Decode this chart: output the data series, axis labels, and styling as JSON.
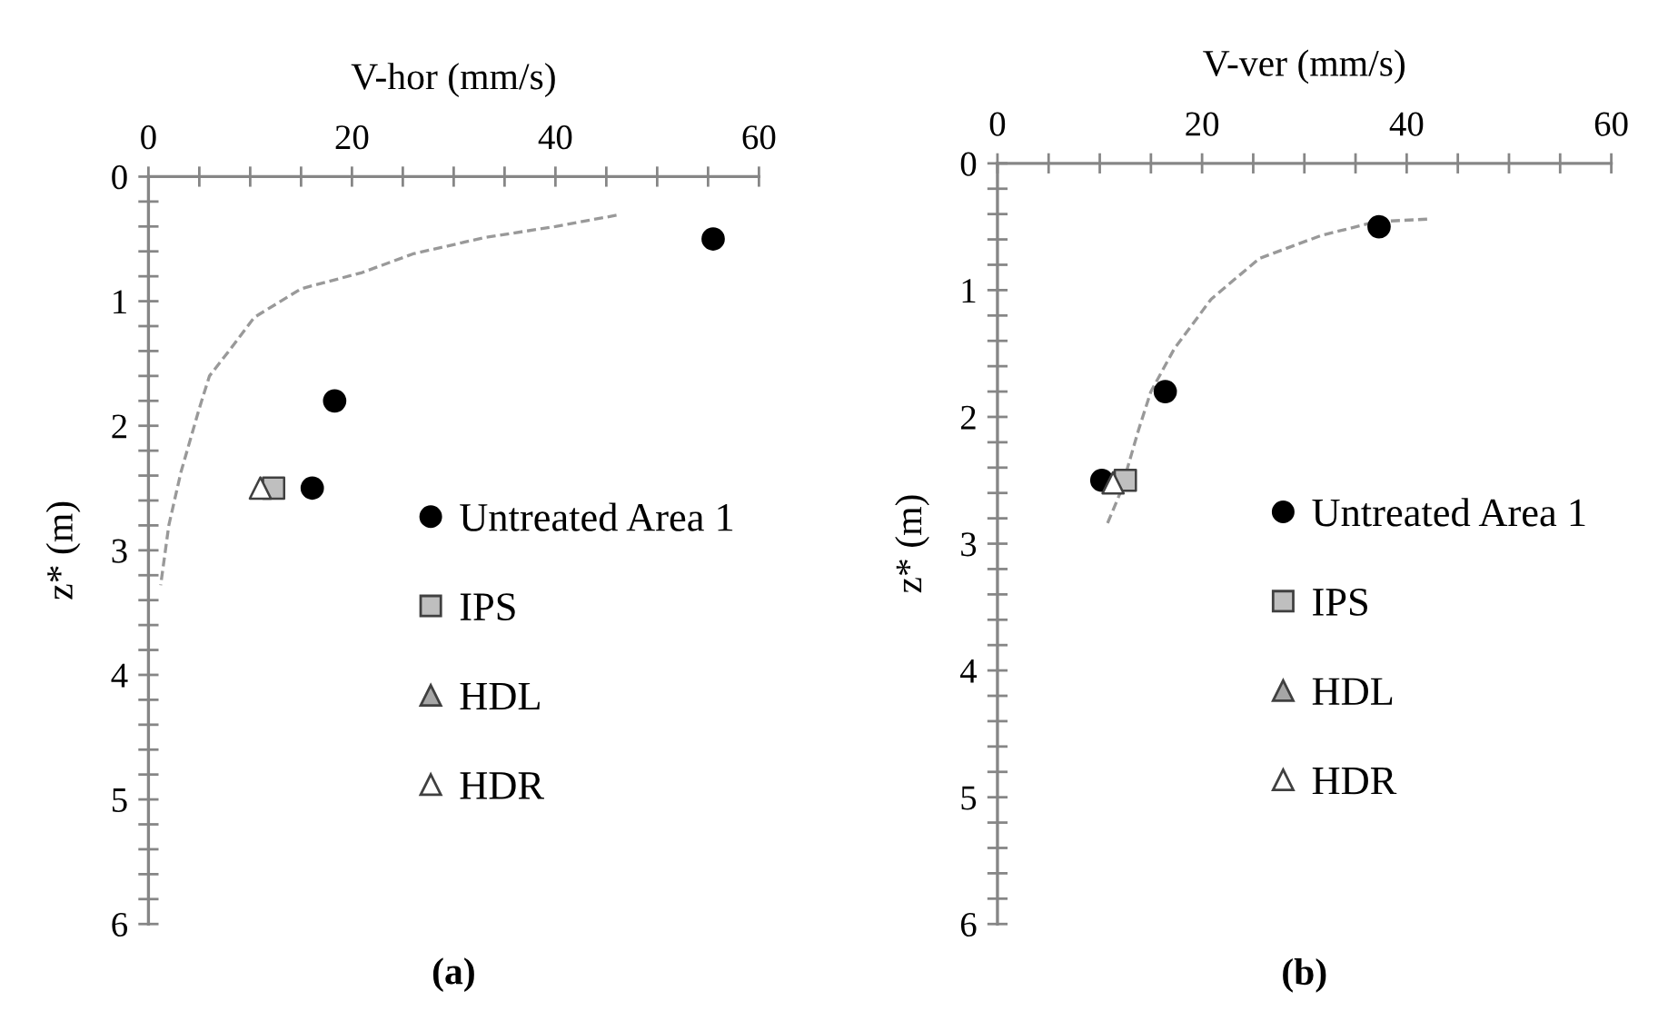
{
  "chart_data": [
    {
      "type": "scatter",
      "xlabel": "V-hor (mm/s)",
      "ylabel": "z* (m)",
      "annotations": [
        "(a)"
      ],
      "xlim": [
        0,
        60
      ],
      "ylim": [
        6,
        0
      ],
      "xticks": [
        0,
        {
          "value": 5,
          "label": null
        },
        {
          "value": 10,
          "label": null
        },
        {
          "value": 15,
          "label": null
        },
        20,
        {
          "value": 25,
          "label": null
        },
        {
          "value": 30,
          "label": null
        },
        {
          "value": 35,
          "label": null
        },
        40,
        {
          "value": 45,
          "label": null
        },
        {
          "value": 50,
          "label": null
        },
        {
          "value": 55,
          "label": null
        },
        60
      ],
      "yticks": [
        0,
        {
          "value": 0.2,
          "label": null
        },
        {
          "value": 0.4,
          "label": null
        },
        {
          "value": 0.6,
          "label": null
        },
        {
          "value": 0.8,
          "label": null
        },
        1,
        {
          "value": 1.2,
          "label": null
        },
        {
          "value": 1.4,
          "label": null
        },
        {
          "value": 1.6,
          "label": null
        },
        {
          "value": 1.8,
          "label": null
        },
        2,
        {
          "value": 2.2,
          "label": null
        },
        {
          "value": 2.4,
          "label": null
        },
        {
          "value": 2.6,
          "label": null
        },
        {
          "value": 2.8,
          "label": null
        },
        3,
        {
          "value": 3.2,
          "label": null
        },
        {
          "value": 3.4,
          "label": null
        },
        {
          "value": 3.6,
          "label": null
        },
        {
          "value": 3.8,
          "label": null
        },
        4,
        {
          "value": 4.2,
          "label": null
        },
        {
          "value": 4.4,
          "label": null
        },
        {
          "value": 4.6,
          "label": null
        },
        {
          "value": 4.8,
          "label": null
        },
        5,
        {
          "value": 5.2,
          "label": null
        },
        {
          "value": 5.4,
          "label": null
        },
        {
          "value": 5.6,
          "label": null
        },
        {
          "value": 5.8,
          "label": null
        },
        6
      ],
      "legend": "center right",
      "grid": false,
      "series": [
        {
          "type": "line",
          "color": "#999999",
          "line_style": "dashed",
          "marker": "none",
          "x": [
            46,
            40,
            33,
            26,
            21,
            15,
            10.4,
            8,
            6,
            5,
            3.2,
            2,
            1.2
          ],
          "values": [
            0.31,
            0.4,
            0.49,
            0.62,
            0.77,
            0.9,
            1.13,
            1.39,
            1.6,
            1.86,
            2.37,
            2.8,
            3.28
          ]
        },
        {
          "name": "Untreated Area 1",
          "color": "#000000",
          "marker": "circle",
          "x": [
            55.5,
            18.3,
            16.1
          ],
          "values": [
            0.5,
            1.8,
            2.5
          ]
        },
        {
          "name": "IPS",
          "color": "#bfbfbf",
          "marker": "square",
          "x": [
            12.3
          ],
          "values": [
            2.5
          ]
        },
        {
          "name": "HDL",
          "color": "#a6a6a6",
          "marker": "triangle",
          "x": [
            null
          ],
          "values": [
            null
          ]
        },
        {
          "name": "HDR",
          "color": "#ffffff",
          "marker": "triangle",
          "x": [
            11
          ],
          "values": [
            2.5
          ]
        }
      ]
    },
    {
      "type": "scatter",
      "xlabel": "V-ver (mm/s)",
      "ylabel": "z* (m)",
      "annotations": [
        "(b)"
      ],
      "xlim": [
        0,
        60
      ],
      "ylim": [
        6,
        0
      ],
      "xticks": [
        0,
        {
          "value": 5,
          "label": null
        },
        {
          "value": 10,
          "label": null
        },
        {
          "value": 15,
          "label": null
        },
        20,
        {
          "value": 25,
          "label": null
        },
        {
          "value": 30,
          "label": null
        },
        {
          "value": 35,
          "label": null
        },
        40,
        {
          "value": 45,
          "label": null
        },
        {
          "value": 50,
          "label": null
        },
        {
          "value": 55,
          "label": null
        },
        60
      ],
      "yticks": [
        0,
        {
          "value": 0.2,
          "label": null
        },
        {
          "value": 0.4,
          "label": null
        },
        {
          "value": 0.6,
          "label": null
        },
        {
          "value": 0.8,
          "label": null
        },
        1,
        {
          "value": 1.2,
          "label": null
        },
        {
          "value": 1.4,
          "label": null
        },
        {
          "value": 1.6,
          "label": null
        },
        {
          "value": 1.8,
          "label": null
        },
        2,
        {
          "value": 2.2,
          "label": null
        },
        {
          "value": 2.4,
          "label": null
        },
        {
          "value": 2.6,
          "label": null
        },
        {
          "value": 2.8,
          "label": null
        },
        3,
        {
          "value": 3.2,
          "label": null
        },
        {
          "value": 3.4,
          "label": null
        },
        {
          "value": 3.6,
          "label": null
        },
        {
          "value": 3.8,
          "label": null
        },
        4,
        {
          "value": 4.2,
          "label": null
        },
        {
          "value": 4.4,
          "label": null
        },
        {
          "value": 4.6,
          "label": null
        },
        {
          "value": 4.8,
          "label": null
        },
        5,
        {
          "value": 5.2,
          "label": null
        },
        {
          "value": 5.4,
          "label": null
        },
        {
          "value": 5.6,
          "label": null
        },
        {
          "value": 5.8,
          "label": null
        },
        6
      ],
      "legend": "center right",
      "grid": false,
      "series": [
        {
          "type": "line",
          "color": "#999999",
          "line_style": "dashed",
          "marker": "none",
          "x": [
            42,
            37,
            31.6,
            25.6,
            20.9,
            17.3,
            15,
            13.8,
            12,
            10.7
          ],
          "values": [
            0.44,
            0.46,
            0.57,
            0.75,
            1.07,
            1.46,
            1.8,
            2.1,
            2.6,
            2.85
          ]
        },
        {
          "name": "Untreated Area 1",
          "color": "#000000",
          "marker": "circle",
          "x": [
            37.3,
            16.4,
            10.2
          ],
          "values": [
            0.5,
            1.8,
            2.5
          ]
        },
        {
          "name": "IPS",
          "color": "#bfbfbf",
          "marker": "square",
          "x": [
            12.5
          ],
          "values": [
            2.5
          ]
        },
        {
          "name": "HDL",
          "color": "#a6a6a6",
          "marker": "triangle",
          "x": [
            null
          ],
          "values": [
            null
          ]
        },
        {
          "name": "HDR",
          "color": "#ffffff",
          "marker": "triangle",
          "x": [
            11.3
          ],
          "values": [
            2.52
          ]
        }
      ]
    }
  ]
}
